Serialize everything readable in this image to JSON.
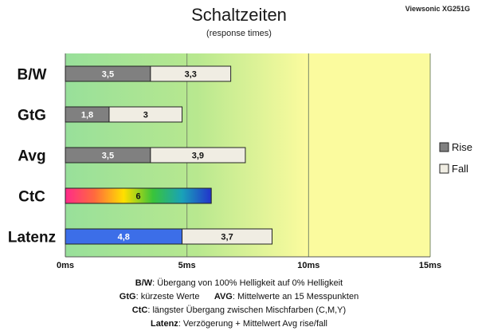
{
  "header": {
    "title": "Schaltzeiten",
    "subtitle": "(response times)",
    "brand": "Viewsonic XG251G"
  },
  "colors": {
    "rise": "#808080",
    "fall": "#f0ede3",
    "latenz_rise": "#3c6ee8",
    "zone_green": "#98e09a",
    "zone_yellow": "#fbfb9e"
  },
  "chart_data": {
    "type": "bar",
    "orientation": "horizontal",
    "stacked": true,
    "title": "Schaltzeiten",
    "subtitle": "(response times)",
    "xlim": [
      0,
      15
    ],
    "x_ticks": [
      "0ms",
      "5ms",
      "10ms",
      "15ms"
    ],
    "x_tick_values": [
      0,
      5,
      10,
      15
    ],
    "grid": true,
    "legend_position": "right",
    "categories": [
      "B/W",
      "GtG",
      "Avg",
      "CtC",
      "Latenz"
    ],
    "series": [
      {
        "name": "Rise",
        "values": [
          3.5,
          1.8,
          3.5,
          null,
          4.8
        ],
        "labels": [
          "3,5",
          "1,8",
          "3,5",
          "",
          "4,8"
        ]
      },
      {
        "name": "Fall",
        "values": [
          3.3,
          3.0,
          3.9,
          null,
          3.7
        ],
        "labels": [
          "3,3",
          "3",
          "3,9",
          "",
          "3,7"
        ]
      }
    ],
    "ctc": {
      "value": 6,
      "label": "6",
      "gradient": [
        "#ff2a8a",
        "#ff6a3d",
        "#ffe000",
        "#39c43a",
        "#19a2b8",
        "#2233cc"
      ]
    }
  },
  "notes": [
    {
      "key": "B/W",
      "text": ":  Übergang von 100% Helligkeit auf 0% Helligkeit"
    },
    {
      "key": "GtG",
      "text": ": kürzeste  Werte",
      "key2": "AVG",
      "text2": ": Mittelwerte  an 15 Messpunkten"
    },
    {
      "key": "CtC",
      "text": ": längster Übergang  zwischen Mischfarben (C,M,Y)"
    },
    {
      "key": "Latenz",
      "text": ": Verzögerung  + Mittelwert Avg rise/fall"
    }
  ]
}
